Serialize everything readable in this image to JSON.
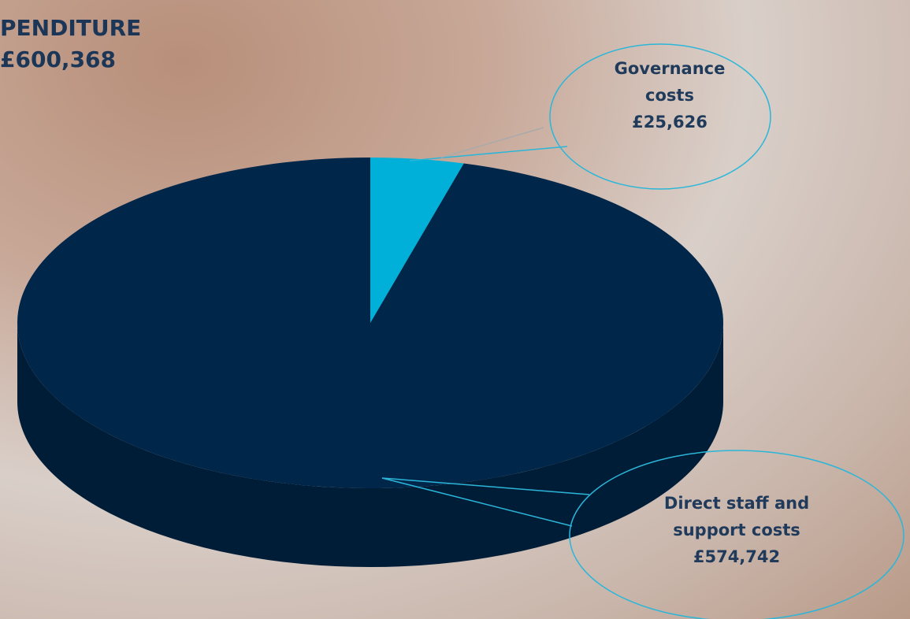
{
  "chart_data": {
    "type": "pie3d",
    "title": "PENDITURE",
    "subtitle": "£600,368",
    "categories": [
      "Governance costs",
      "Direct staff and support costs"
    ],
    "values": [
      25626,
      574742
    ],
    "value_labels": [
      "£25,626",
      "£574,742"
    ],
    "colors": [
      "#00b0d8",
      "#00264a"
    ]
  }
}
